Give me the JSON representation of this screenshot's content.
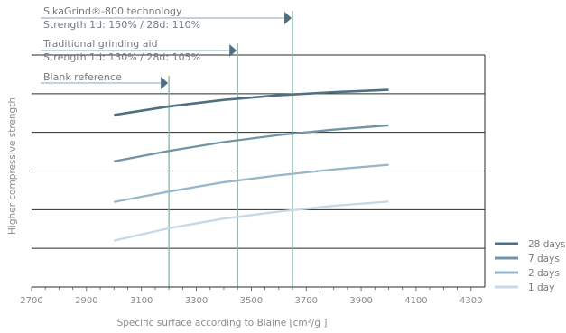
{
  "chart_data": {
    "type": "line",
    "title": "",
    "xlabel": "Specific surface according to Blaine [cm²/g ]",
    "ylabel": "Higher compressive strength",
    "xlim": [
      2700,
      4350
    ],
    "ylim": [
      0,
      6
    ],
    "xticks": [
      2700,
      2900,
      3100,
      3300,
      3500,
      3700,
      3900,
      4100,
      4300
    ],
    "xtick_labels": [
      "2700",
      "2900",
      "3100",
      "3300",
      "3500",
      "3700",
      "3900",
      "4100",
      "4300"
    ],
    "yticks": [
      1,
      2,
      3,
      4,
      5,
      6
    ],
    "grid": "horizontal",
    "legend_position": "bottom-right",
    "x": [
      3000,
      4000
    ],
    "series": [
      {
        "name": "28 days",
        "color": "#4f7080",
        "width": 2.6,
        "x": [
          3000,
          3200,
          3400,
          3600,
          3800,
          4000
        ],
        "values": [
          4.45,
          4.67,
          4.84,
          4.96,
          5.04,
          5.1
        ]
      },
      {
        "name": "7 days",
        "color": "#7394a6",
        "width": 2.3,
        "x": [
          3000,
          3200,
          3400,
          3600,
          3800,
          4000
        ],
        "values": [
          3.25,
          3.52,
          3.75,
          3.93,
          4.07,
          4.18
        ]
      },
      {
        "name": "2 days",
        "color": "#98b6c8",
        "width": 2.3,
        "x": [
          3000,
          3200,
          3400,
          3600,
          3800,
          4000
        ],
        "values": [
          2.2,
          2.47,
          2.71,
          2.89,
          3.04,
          3.16
        ]
      },
      {
        "name": "1 day",
        "color": "#c5d9e5",
        "width": 2.3,
        "x": [
          3000,
          3200,
          3400,
          3600,
          3800,
          4000
        ],
        "values": [
          1.2,
          1.52,
          1.77,
          1.95,
          2.1,
          2.21
        ]
      }
    ],
    "markers": [
      {
        "label": "Blank reference",
        "strength_text": "",
        "x": 3200,
        "color": "#7fb89a"
      },
      {
        "label": "Traditional grinding aid",
        "strength_text": "Strength 1d: 130% / 28d: 105%",
        "x": 3450,
        "color": "#7fb89a"
      },
      {
        "label": "SikaGrind®-800 technology",
        "strength_text": "Strength 1d: 150% / 28d: 110%",
        "x": 3650,
        "color": "#7fb89a"
      }
    ]
  }
}
